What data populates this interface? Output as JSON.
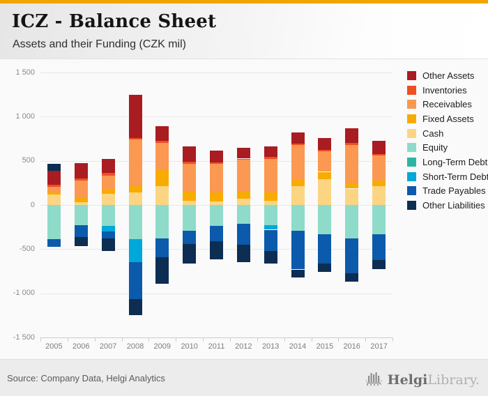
{
  "header": {
    "title": "ICZ - Balance Sheet",
    "subtitle": "Assets and their Funding (CZK mil)"
  },
  "top_strip_color": "#f0a500",
  "footer": {
    "source": "Source: Company Data, Helgi Analytics",
    "logo_primary": "Helgi",
    "logo_secondary": "Library."
  },
  "chart_data": {
    "type": "bar",
    "stacked": true,
    "title": "ICZ - Balance Sheet",
    "subtitle": "Assets and their Funding (CZK mil)",
    "xlabel": "",
    "ylabel": "",
    "ylim": [
      -1500,
      1500
    ],
    "grid": true,
    "legend_position": "right",
    "categories": [
      "2005",
      "2006",
      "2007",
      "2008",
      "2009",
      "2010",
      "2011",
      "2012",
      "2013",
      "2014",
      "2015",
      "2016",
      "2017"
    ],
    "yticks": [
      {
        "value": 1500,
        "label": "1 500"
      },
      {
        "value": 1000,
        "label": "1 000"
      },
      {
        "value": 500,
        "label": "500"
      },
      {
        "value": 0,
        "label": "0"
      },
      {
        "value": -500,
        "label": "-500"
      },
      {
        "value": -1000,
        "label": "-1 000"
      },
      {
        "value": -1500,
        "label": "-1 500"
      }
    ],
    "series": [
      {
        "name": "Other Assets",
        "color": "#a81c22",
        "values": [
          155,
          175,
          155,
          495,
          165,
          170,
          130,
          120,
          120,
          125,
          135,
          165,
          150
        ]
      },
      {
        "name": "Inventories",
        "color": "#f04e23",
        "values": [
          25,
          25,
          30,
          15,
          25,
          25,
          20,
          15,
          20,
          15,
          20,
          20,
          20
        ]
      },
      {
        "name": "Receivables",
        "color": "#fb9851",
        "values": [
          60,
          190,
          155,
          530,
          305,
          315,
          325,
          355,
          385,
          385,
          230,
          430,
          280
        ]
      },
      {
        "name": "Fixed Assets",
        "color": "#f8ab00",
        "values": [
          30,
          55,
          55,
          65,
          185,
          105,
          100,
          85,
          95,
          85,
          85,
          65,
          70
        ]
      },
      {
        "name": "Cash",
        "color": "#fcd583",
        "values": [
          115,
          30,
          125,
          145,
          210,
          45,
          40,
          70,
          45,
          210,
          290,
          185,
          210
        ]
      },
      {
        "name": "Equity",
        "color": "#8edbca",
        "values": [
          -385,
          -225,
          -235,
          -390,
          -375,
          -295,
          -240,
          -215,
          -230,
          -290,
          -335,
          -375,
          -335
        ]
      },
      {
        "name": "Long-Term Debt",
        "color": "#2bb6a3",
        "values": [
          0,
          0,
          0,
          0,
          0,
          0,
          0,
          0,
          0,
          0,
          0,
          0,
          0
        ]
      },
      {
        "name": "Short-Term Debt",
        "color": "#00a8d9",
        "values": [
          0,
          0,
          -65,
          -255,
          0,
          0,
          0,
          0,
          -50,
          0,
          0,
          0,
          0
        ]
      },
      {
        "name": "Trade Payables",
        "color": "#0b5aab",
        "values": [
          -85,
          -135,
          -75,
          -420,
          -220,
          -145,
          -170,
          -235,
          -240,
          -440,
          -325,
          -395,
          -290
        ]
      },
      {
        "name": "Other Liabilities",
        "color": "#0d2d52",
        "values": [
          85,
          -110,
          -145,
          -185,
          -295,
          -220,
          -205,
          -195,
          -145,
          -90,
          -100,
          -95,
          -105
        ]
      }
    ],
    "stack_order_positive": [
      "Cash",
      "Fixed Assets",
      "Receivables",
      "Inventories",
      "Other Assets",
      "Other Liabilities"
    ],
    "stack_order_negative": [
      "Equity",
      "Long-Term Debt",
      "Short-Term Debt",
      "Trade Payables",
      "Other Liabilities"
    ]
  }
}
